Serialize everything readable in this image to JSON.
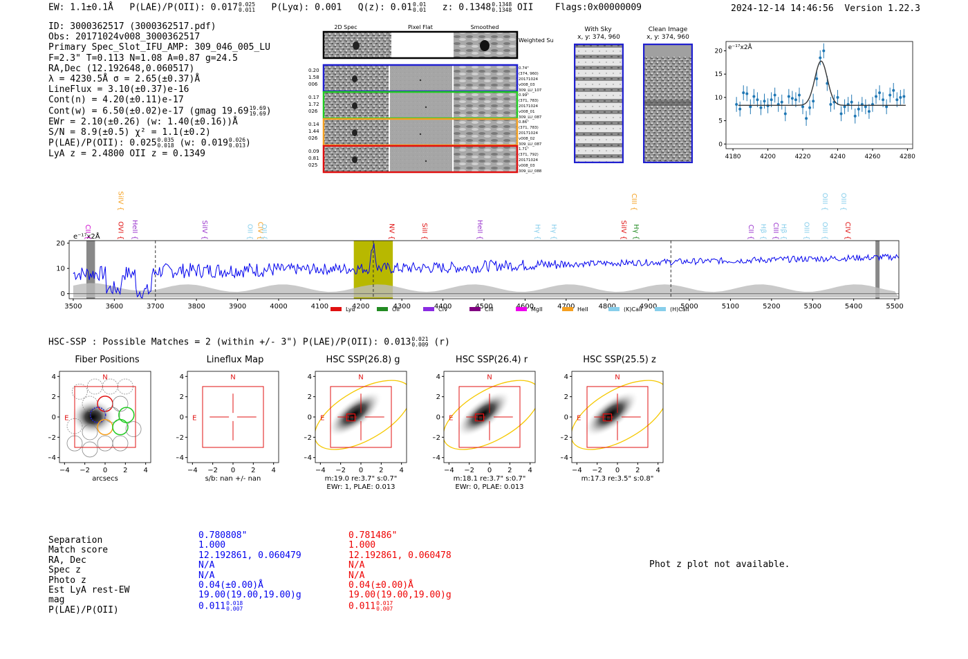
{
  "header": {
    "ew": "EW: 1.1±0.1Å",
    "plae_label": "P(LAE)/P(OII): 0.017",
    "plae_hi": "0.025",
    "plae_lo": "0.011",
    "plya": "P(Lyα): 0.001",
    "qz_label": "Q(z): 0.01",
    "qz_hi": "0.01",
    "qz_lo": "0.01",
    "z_label": "z: 0.1348",
    "z_hi": "0.1348",
    "z_lo": "0.1348",
    "z_line": "OII",
    "flags": "Flags:0x00000009",
    "datetime": "2024-12-14 14:46:56",
    "version": "Version 1.22.3"
  },
  "info": {
    "id": "ID: 3000362517 (3000362517.pdf)",
    "obs": "Obs: 20171024v008_3000362517",
    "primary": "Primary Spec_Slot_IFU_AMP: 309_046_005_LU",
    "fparams": "F=2.3\"  T=0.113  N=1.08  A=0.87  g=24.5",
    "radec": "RA,Dec (12.192648,0.060517)",
    "lambda": "λ = 4230.5Å   σ = 2.65(±0.37)Å",
    "lineflux": "LineFlux = 3.10(±0.37)e-16",
    "contn": "Cont(n) = 4.20(±0.11)e-17",
    "contw": "Cont(w) = 6.50(±0.02)e-17 (gmag 19.69",
    "contw_hi": "19.69",
    "contw_lo": "19.69",
    "contw_close": ")",
    "ewr": "EWr = 2.10(±0.26) (w: 1.40(±0.16))Å",
    "sn": "S/N = 8.9(±0.5)  χ² = 1.1(±0.2)",
    "plae": "P(LAE)/P(OII): 0.025",
    "plae_hi": "0.035",
    "plae_lo": "0.018",
    "plae_w": "(w: 0.019",
    "plae_w_hi": "0.026",
    "plae_w_lo": "0.013",
    "plae_close": ")",
    "lyaz": "LyA z = 2.4800   OII z = 0.1349"
  },
  "cutouts": {
    "col_2d": "2D Spec",
    "col_flat": "Pixel Flat",
    "col_smooth": "Smoothed",
    "weighted": "Weighted Sum",
    "rows": [
      {
        "color": "#1f1fd0",
        "left": [
          "0.20",
          "1.58",
          "006"
        ],
        "right": [
          "0.74\"",
          "(374, 960)",
          "20171024",
          "v008_03",
          "309_LU_107"
        ]
      },
      {
        "color": "#22cc22",
        "left": [
          "0.17",
          "1.72",
          "026"
        ],
        "right": [
          "0.99\"",
          "(371, 783)",
          "20171024",
          "v008_01",
          "309_LU_087"
        ]
      },
      {
        "color": "#f5a020",
        "left": [
          "0.14",
          "1.44",
          "026"
        ],
        "right": [
          "0.86\"",
          "(371, 783)",
          "20171024",
          "v008_02",
          "309_LU_087"
        ]
      },
      {
        "color": "#e01010",
        "left": [
          "0.09",
          "0.81",
          "025"
        ],
        "right": [
          "1.71\"",
          "(371, 792)",
          "20171024",
          "v008_03",
          "309_LU_088"
        ]
      }
    ],
    "with_sky_title": "With Sky",
    "with_sky_xy": "x, y: 374, 960",
    "clean_title": "Clean Image",
    "clean_xy": "x, y: 374, 960"
  },
  "fit_chart": {
    "type": "scatter",
    "ylabel": "e⁻¹⁷x2Å",
    "xlim": [
      4176,
      4283
    ],
    "ylim": [
      -1,
      22
    ],
    "xticks": [
      4180,
      4200,
      4220,
      4240,
      4260,
      4280
    ],
    "yticks": [
      0,
      5,
      10,
      15,
      20
    ],
    "x": [
      4182,
      4184,
      4186,
      4188,
      4190,
      4192,
      4194,
      4196,
      4198,
      4200,
      4202,
      4204,
      4206,
      4208,
      4210,
      4212,
      4214,
      4216,
      4218,
      4220,
      4222,
      4224,
      4226,
      4228,
      4230,
      4232,
      4234,
      4236,
      4238,
      4240,
      4242,
      4244,
      4246,
      4248,
      4250,
      4252,
      4254,
      4256,
      4258,
      4260,
      4262,
      4264,
      4266,
      4268,
      4270,
      4272,
      4274,
      4276,
      4278
    ],
    "y": [
      8.5,
      7.5,
      11.0,
      10.8,
      8.0,
      10.2,
      9.5,
      7.8,
      9.2,
      8.2,
      9.5,
      10.5,
      8.5,
      9.0,
      6.5,
      10.2,
      9.8,
      9.5,
      10.5,
      8.0,
      5.5,
      7.8,
      9.2,
      14.0,
      18.5,
      20.0,
      13.0,
      8.5,
      9.0,
      10.0,
      6.5,
      8.0,
      8.5,
      9.0,
      6.0,
      7.5,
      8.5,
      8.0,
      7.0,
      8.5,
      10.2,
      11.0,
      9.5,
      8.0,
      10.5,
      11.5,
      9.5,
      10.0,
      10.2
    ],
    "fit_base": 8.3,
    "fit_amp": 9.5,
    "fit_center": 4230.5,
    "fit_sigma": 2.65,
    "color": "#1f77b4"
  },
  "spectrum": {
    "type": "line",
    "ylabel": "e⁻¹⁷x2Å",
    "xlim": [
      3490,
      5510
    ],
    "ylim": [
      -2,
      21
    ],
    "xticks": [
      3500,
      3600,
      3700,
      3800,
      3900,
      4000,
      4100,
      4200,
      4300,
      4400,
      4500,
      4600,
      4700,
      4800,
      4900,
      5000,
      5100,
      5200,
      5300,
      5400,
      5500
    ],
    "yticks": [
      0,
      10,
      20
    ],
    "highlight": [
      4183,
      4278
    ],
    "dashed": [
      3700,
      4230.5,
      4955
    ],
    "masks": [
      [
        3532,
        3553
      ],
      [
        5453,
        5463
      ]
    ],
    "lines": [
      {
        "name": "CII",
        "x": 3525,
        "color": "#cc00cc",
        "row": "low"
      },
      {
        "name": "SiIV",
        "x": 3605,
        "color": "#f5a020",
        "row": "high"
      },
      {
        "name": "OVI",
        "x": 3605,
        "color": "#e01010",
        "row": "low"
      },
      {
        "name": "HeII",
        "x": 3640,
        "color": "#9933cc",
        "row": "low"
      },
      {
        "name": "SiIV",
        "x": 3810,
        "color": "#9933cc",
        "row": "low"
      },
      {
        "name": "OII",
        "x": 3920,
        "color": "#87ceeb",
        "row": "low"
      },
      {
        "name": "CIV",
        "x": 3945,
        "color": "#f5a020",
        "row": "low"
      },
      {
        "name": "OII",
        "x": 3955,
        "color": "#87ceeb",
        "row": "low"
      },
      {
        "name": "NV",
        "x": 4265,
        "color": "#e01010",
        "row": "low"
      },
      {
        "name": "SiII",
        "x": 4345,
        "color": "#e01010",
        "row": "low"
      },
      {
        "name": "HeII",
        "x": 4480,
        "color": "#9933cc",
        "row": "low"
      },
      {
        "name": "Hγ",
        "x": 4620,
        "color": "#87ceeb",
        "row": "low"
      },
      {
        "name": "Hγ",
        "x": 4660,
        "color": "#87ceeb",
        "row": "low"
      },
      {
        "name": "SiIV",
        "x": 4830,
        "color": "#e01010",
        "row": "low"
      },
      {
        "name": "CIII",
        "x": 4855,
        "color": "#f5a020",
        "row": "high"
      },
      {
        "name": "Hγ",
        "x": 4860,
        "color": "#228b22",
        "row": "low"
      },
      {
        "name": "CII",
        "x": 5140,
        "color": "#9933cc",
        "row": "low"
      },
      {
        "name": "Hβ",
        "x": 5170,
        "color": "#87ceeb",
        "row": "low"
      },
      {
        "name": "CIII",
        "x": 5200,
        "color": "#9933cc",
        "row": "low"
      },
      {
        "name": "Hβ",
        "x": 5220,
        "color": "#87ceeb",
        "row": "low"
      },
      {
        "name": "OIII",
        "x": 5275,
        "color": "#87ceeb",
        "row": "low"
      },
      {
        "name": "OIII",
        "x": 5320,
        "color": "#87ceeb",
        "row": "high"
      },
      {
        "name": "OIII",
        "x": 5320,
        "color": "#87ceeb",
        "row": "low"
      },
      {
        "name": "OIII",
        "x": 5365,
        "color": "#87ceeb",
        "row": "high"
      },
      {
        "name": "CIV",
        "x": 5375,
        "color": "#e01010",
        "row": "low"
      }
    ],
    "legend": [
      {
        "name": "Lyα",
        "color": "#e01010"
      },
      {
        "name": "OII",
        "color": "#228b22"
      },
      {
        "name": "CIV",
        "color": "#8a2be2"
      },
      {
        "name": "CIII",
        "color": "#800080"
      },
      {
        "name": "MgII",
        "color": "#ee00ee"
      },
      {
        "name": "HeII",
        "color": "#f5a020"
      },
      {
        "name": "(K)CaII",
        "color": "#87ceeb"
      },
      {
        "name": "(H)CaII",
        "color": "#87ceeb"
      }
    ],
    "color": "#0000ee"
  },
  "hsc": {
    "title": "HSC-SSP : Possible Matches = 2 (within +/- 3\")  P(LAE)/P(OII): 0.013",
    "title_hi": "0.021",
    "title_lo": "0.009",
    "title_band": "(r)",
    "panels": [
      {
        "title": "Fiber Positions",
        "xlabel": "arcsecs",
        "line2": ""
      },
      {
        "title": "Lineflux Map",
        "xlabel": "s/b: nan +/- nan",
        "line2": ""
      },
      {
        "title": "HSC SSP(26.8) g",
        "xlabel": "m:19.0  re:3.7\"  s:0.7\"",
        "line2": "EWr: 1, PLAE: 0.013"
      },
      {
        "title": "HSC SSP(26.4) r",
        "xlabel": "m:18.1  re:3.7\"  s:0.7\"",
        "line2": "EWr: 0, PLAE: 0.013"
      },
      {
        "title": "HSC SSP(25.5) z",
        "xlabel": "m:17.3  re:3.5\"  s:0.8\"",
        "line2": ""
      }
    ],
    "ticks": [
      "−4",
      "−2",
      "0",
      "2",
      "4"
    ],
    "north": "N",
    "east": "E"
  },
  "table": {
    "labels": [
      "Separation",
      "Match score",
      "RA, Dec",
      "Spec z",
      "Photo z",
      "Est LyA rest-EW",
      "mag",
      "P(LAE)/P(OII)"
    ],
    "m1": [
      "0.780808\"",
      "1.000",
      "12.192861, 0.060479",
      "N/A",
      "N/A",
      "0.04(±0.00)Å",
      "19.00(19.00,19.00)g",
      "0.011"
    ],
    "m1_hi": "0.018",
    "m1_lo": "0.007",
    "m2": [
      "0.781486\"",
      "1.000",
      "12.192861, 0.060478",
      "N/A",
      "N/A",
      "0.04(±0.00)Å",
      "19.00(19.00,19.00)g",
      "0.011"
    ],
    "m2_hi": "0.017",
    "m2_lo": "0.007",
    "m1_color": "#0000ee",
    "m2_color": "#ee0000",
    "photz_note": "Phot z plot not available."
  }
}
